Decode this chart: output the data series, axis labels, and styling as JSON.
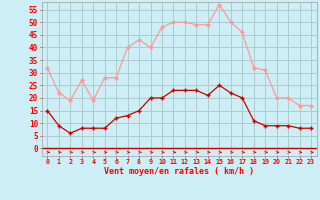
{
  "hours": [
    0,
    1,
    2,
    3,
    4,
    5,
    6,
    7,
    8,
    9,
    10,
    11,
    12,
    13,
    14,
    15,
    16,
    17,
    18,
    19,
    20,
    21,
    22,
    23
  ],
  "wind_avg": [
    15,
    9,
    6,
    8,
    8,
    8,
    12,
    13,
    15,
    20,
    20,
    23,
    23,
    23,
    21,
    25,
    22,
    20,
    11,
    9,
    9,
    9,
    8,
    8
  ],
  "wind_gust": [
    32,
    22,
    19,
    27,
    19,
    28,
    28,
    40,
    43,
    40,
    48,
    50,
    50,
    49,
    49,
    57,
    50,
    46,
    32,
    31,
    20,
    20,
    17,
    17
  ],
  "bg_color": "#cceef4",
  "grid_color": "#aacccc",
  "avg_color": "#cc0000",
  "gust_color": "#ff9999",
  "xlabel": "Vent moyen/en rafales ( km/h )",
  "ylabel_ticks": [
    0,
    5,
    10,
    15,
    20,
    25,
    30,
    35,
    40,
    45,
    50,
    55
  ],
  "ylim": [
    -3,
    58
  ],
  "xlim": [
    -0.5,
    23.5
  ]
}
